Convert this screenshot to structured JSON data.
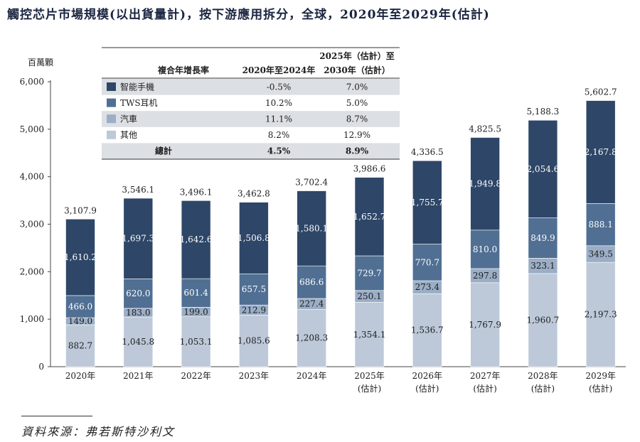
{
  "title": "觸控芯片市場規模(以出貨量計)，按下游應用拆分，全球，2020年至2029年(估計)",
  "source": "資料來源：弗若斯特沙利文",
  "chart_data": {
    "type": "bar",
    "stacked": true,
    "ylabel": "百萬顆",
    "ylim": [
      0,
      6000
    ],
    "yticks": [
      "0",
      "1,000",
      "2,000",
      "3,000",
      "4,000",
      "5,000",
      "6,000"
    ],
    "ytick_values": [
      0,
      1000,
      2000,
      3000,
      4000,
      5000,
      6000
    ],
    "categories": [
      "2020年",
      "2021年",
      "2022年",
      "2023年",
      "2024年",
      "2025年",
      "2026年",
      "2027年",
      "2028年",
      "2029年"
    ],
    "category_notes": [
      "",
      "",
      "",
      "",
      "",
      "(估計)",
      "(估計)",
      "(估計)",
      "(估計)",
      "(估計)"
    ],
    "series": [
      {
        "name": "其他",
        "color": "#bdc9d9",
        "label_color": "#1d1d1d",
        "values": [
          882.7,
          1045.8,
          1053.1,
          1085.6,
          1208.3,
          1354.1,
          1536.7,
          1767.9,
          1960.7,
          2197.3
        ],
        "labels": [
          "882.7",
          "1,045.8",
          "1,053.1",
          "1,085.6",
          "1,208.3",
          "1,354.1",
          "1,536.7",
          "1,767.9",
          "1,960.7",
          "2,197.3"
        ]
      },
      {
        "name": "汽車",
        "color": "#9baec6",
        "label_color": "#1d1d1d",
        "values": [
          149.0,
          183.0,
          199.0,
          212.9,
          227.4,
          250.1,
          273.4,
          297.8,
          323.1,
          349.5
        ],
        "labels": [
          "149.0",
          "183.0",
          "199.0",
          "212.9",
          "227.4",
          "250.1",
          "273.4",
          "297.8",
          "323.1",
          "349.5"
        ]
      },
      {
        "name": "TWS耳机",
        "color": "#506f93",
        "label_color": "#ffffff",
        "values": [
          466.0,
          620.0,
          601.4,
          657.5,
          686.6,
          729.7,
          770.7,
          810.0,
          849.9,
          888.1
        ],
        "labels": [
          "466.0",
          "620.0",
          "601.4",
          "657.5",
          "686.6",
          "729.7",
          "770.7",
          "810.0",
          "849.9",
          "888.1"
        ]
      },
      {
        "name": "智能手機",
        "color": "#2e4667",
        "label_color": "#ffffff",
        "values": [
          1610.2,
          1697.3,
          1642.6,
          1506.8,
          1580.1,
          1652.7,
          1755.7,
          1949.8,
          2054.6,
          2167.8
        ],
        "labels": [
          "1,610.2",
          "1,697.3",
          "1,642.6",
          "1,506.8",
          "1,580.1",
          "1,652.7",
          "1,755.7",
          "1,949.8",
          "2,054.6",
          "2,167.8"
        ]
      }
    ],
    "totals": [
      3107.9,
      3546.1,
      3496.1,
      3462.8,
      3702.4,
      3986.6,
      4336.5,
      4825.5,
      5188.3,
      5602.7
    ],
    "total_labels": [
      "3,107.9",
      "3,546.1",
      "3,496.1",
      "3,462.8",
      "3,702.4",
      "3,986.6",
      "4,336.5",
      "4,825.5",
      "5,188.3",
      "5,602.7"
    ],
    "cagr_table": {
      "header_label": "複合年增長率",
      "col1": "2020年至2024年",
      "col2_line1": "2025年（估計）至",
      "col2_line2": "2030年（估計）",
      "rows": [
        {
          "name": "智能手機",
          "color": "#2e4667",
          "c1": "-0.5%",
          "c2": "7.0%"
        },
        {
          "name": "TWS耳机",
          "color": "#506f93",
          "c1": "10.2%",
          "c2": "5.0%"
        },
        {
          "name": "汽車",
          "color": "#9baec6",
          "c1": "11.1%",
          "c2": "8.7%"
        },
        {
          "name": "其他",
          "color": "#bdc9d9",
          "c1": "8.2%",
          "c2": "12.9%"
        }
      ],
      "total": {
        "name": "總計",
        "c1": "4.5%",
        "c2": "8.9%"
      }
    }
  }
}
